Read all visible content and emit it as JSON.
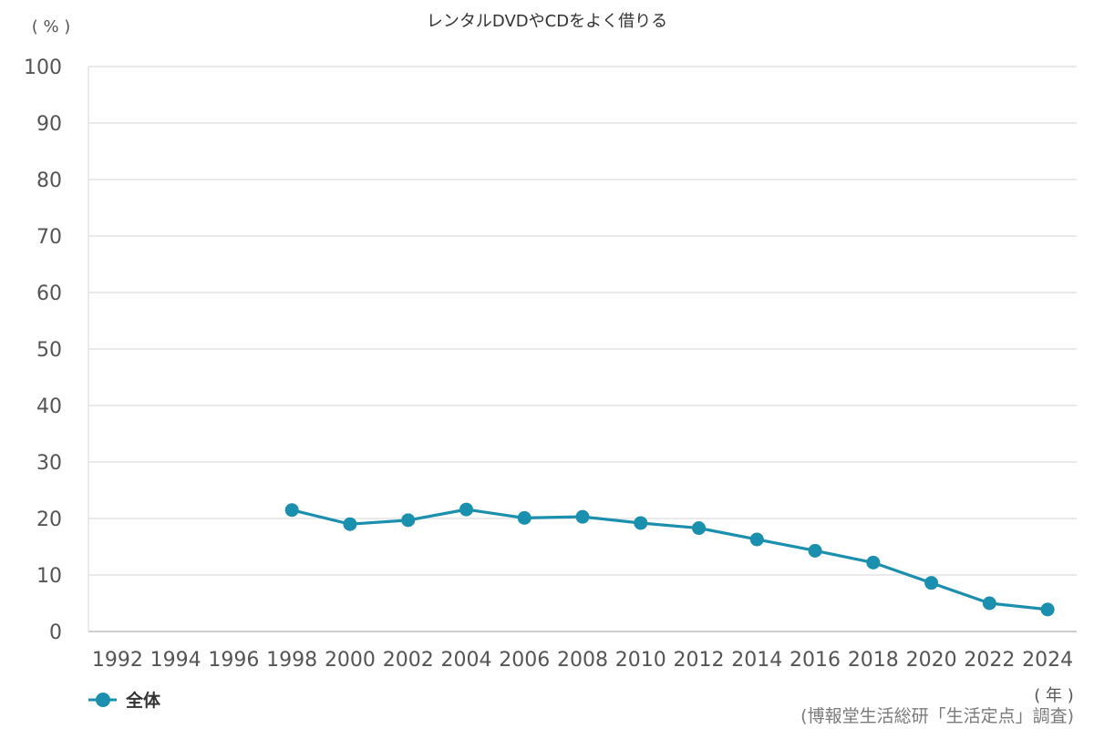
{
  "chart_data": {
    "type": "line",
    "title": "レンタルDVDやCDをよく借りる",
    "y_unit": "( % )",
    "x_unit": "( 年 )",
    "source": "(博報堂生活総研「生活定点」調査)",
    "x": [
      "1992",
      "1994",
      "1996",
      "1998",
      "2000",
      "2002",
      "2004",
      "2006",
      "2008",
      "2010",
      "2012",
      "2014",
      "2016",
      "2018",
      "2020",
      "2022",
      "2024"
    ],
    "yticks": [
      0,
      10,
      20,
      30,
      40,
      50,
      60,
      70,
      80,
      90,
      100
    ],
    "ylim": [
      0,
      100
    ],
    "grid": true,
    "legend_position": "bottom-left",
    "series": [
      {
        "name": "全体",
        "color": "#1a8fae",
        "values": [
          null,
          null,
          null,
          21.5,
          19.0,
          19.7,
          21.6,
          20.1,
          20.3,
          19.2,
          18.3,
          16.3,
          14.3,
          12.2,
          8.6,
          5.0,
          3.9
        ]
      }
    ]
  }
}
